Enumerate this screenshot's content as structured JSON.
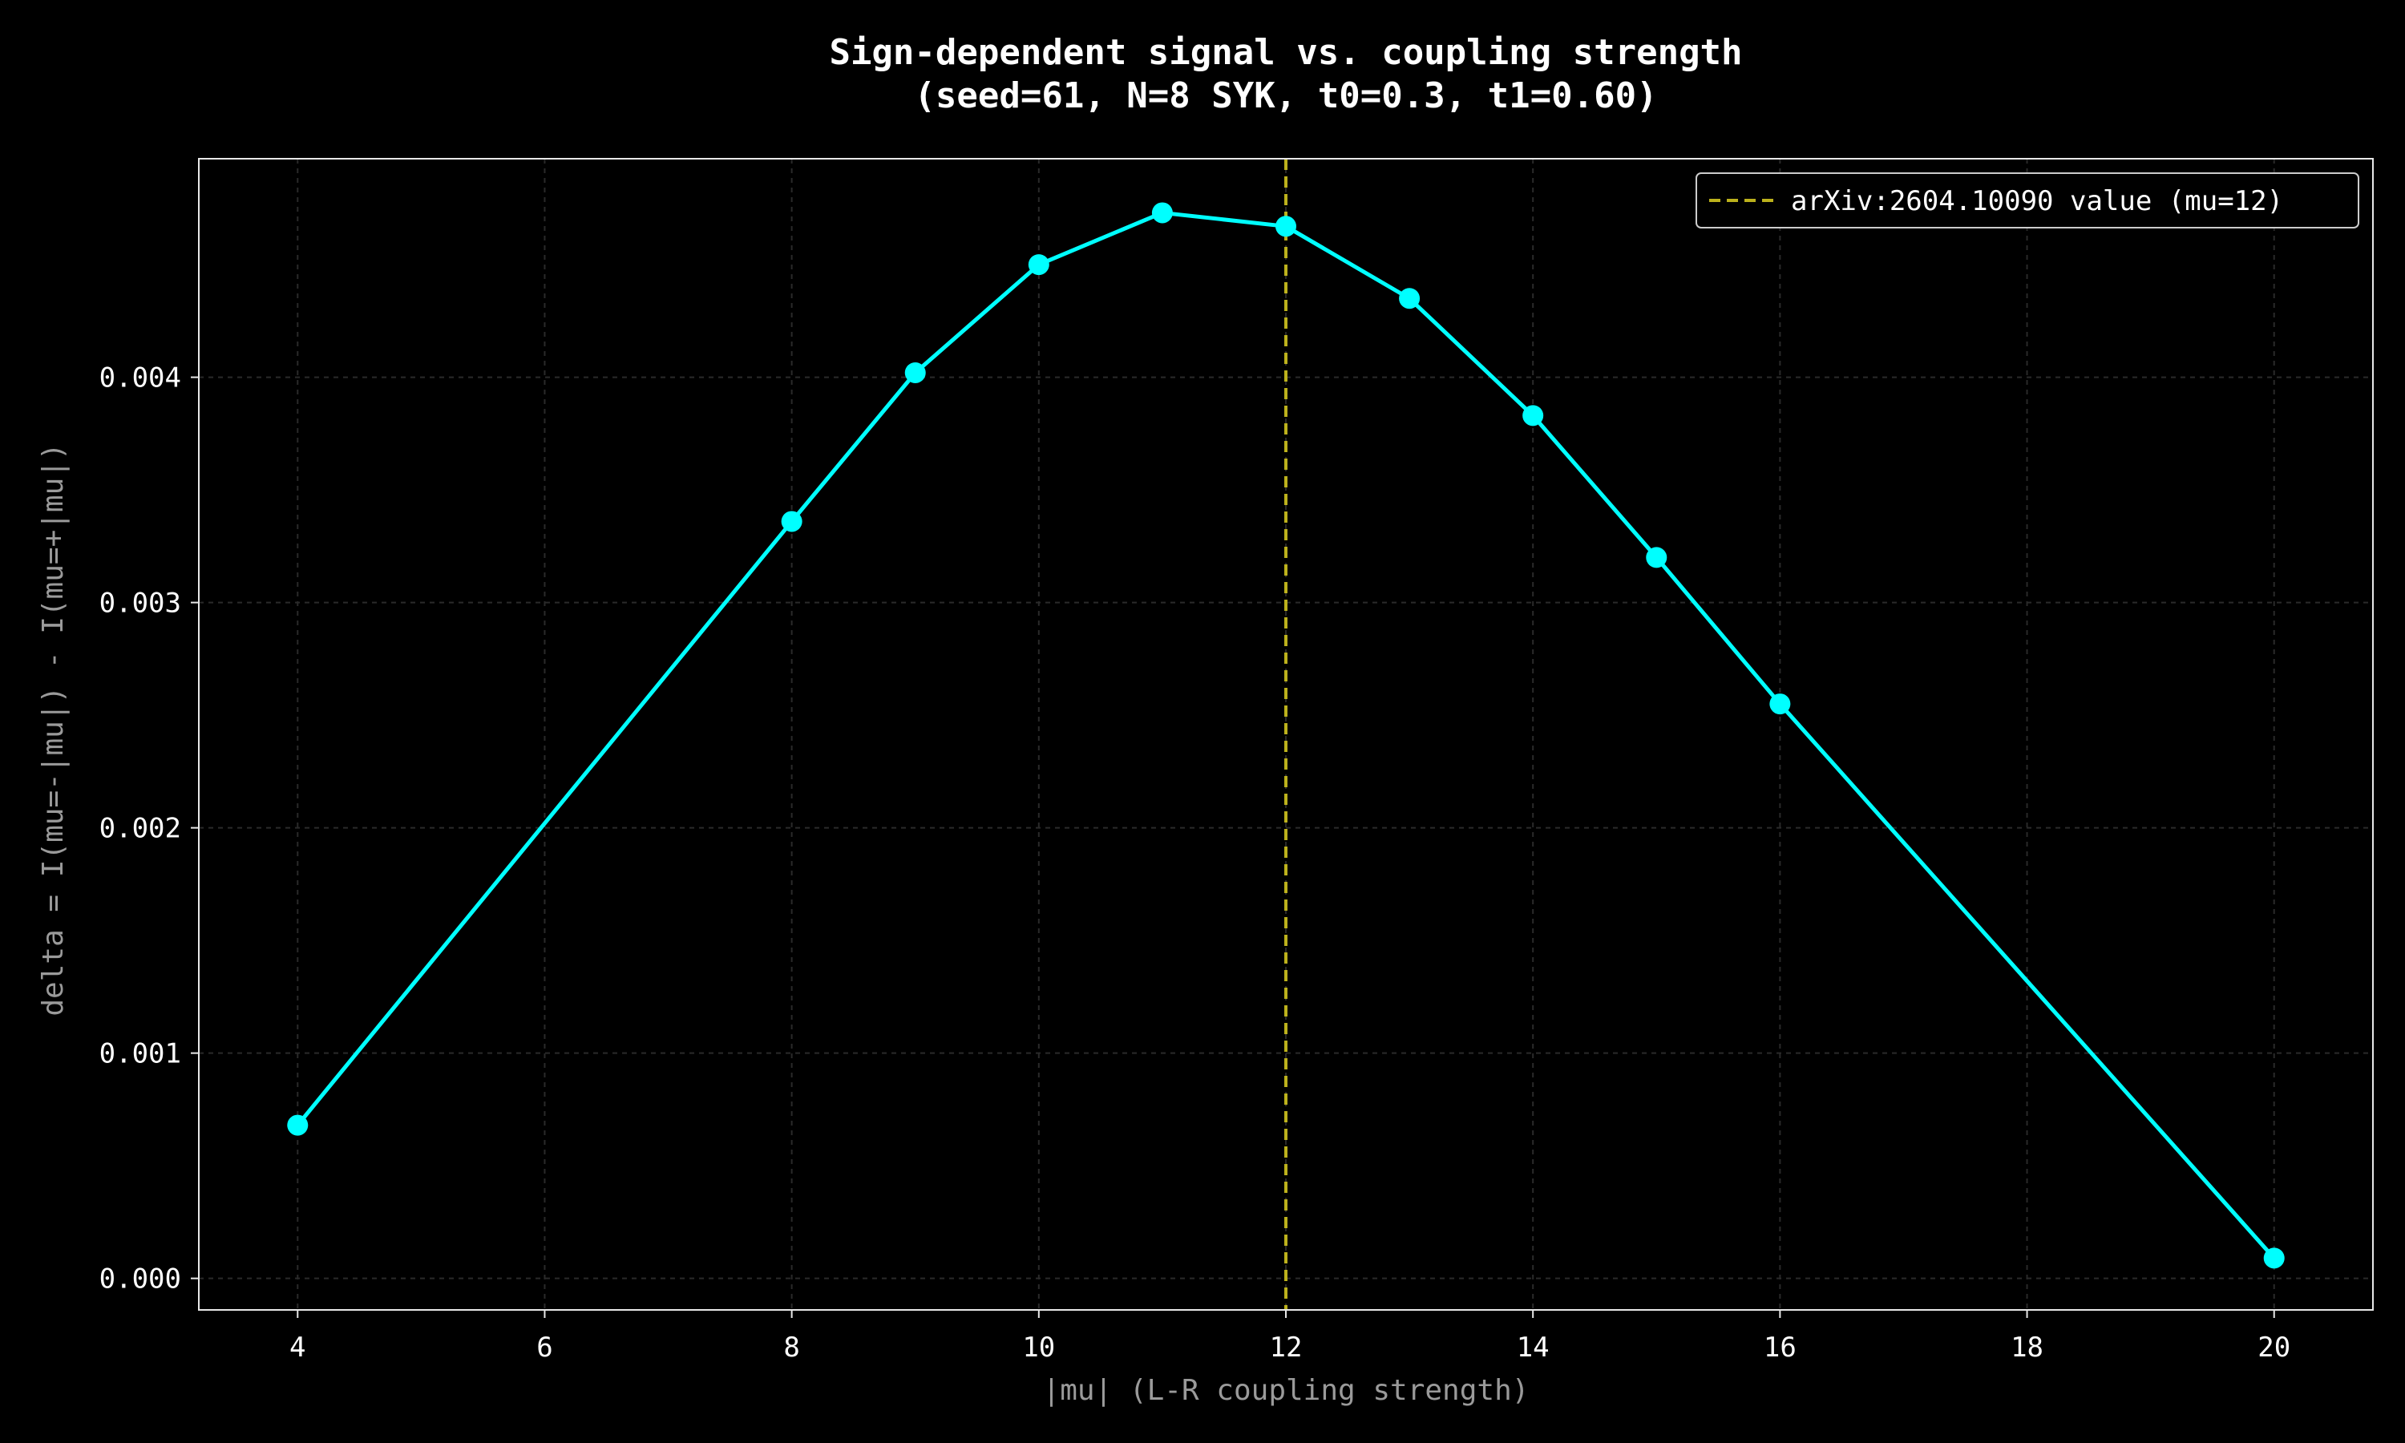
{
  "chart_data": {
    "type": "line",
    "title": "Sign-dependent signal vs. coupling strength",
    "subtitle": "(seed=61, N=8 SYK, t0=0.3, t1=0.60)",
    "xlabel": "|mu| (L-R coupling strength)",
    "ylabel": "delta = I(mu=-|mu|) - I(mu=+|mu|)",
    "xlim": [
      3.2,
      20.8
    ],
    "ylim": [
      -0.00014,
      0.00497
    ],
    "xticks": [
      4,
      6,
      8,
      10,
      12,
      14,
      16,
      18,
      20
    ],
    "xtick_labels": [
      "4",
      "6",
      "8",
      "10",
      "12",
      "14",
      "16",
      "18",
      "20"
    ],
    "yticks": [
      0.0,
      0.001,
      0.002,
      0.003,
      0.004
    ],
    "ytick_labels": [
      "0.000",
      "0.001",
      "0.002",
      "0.003",
      "0.004"
    ],
    "grid": true,
    "legend_position": "top-right",
    "series": [
      {
        "x": [
          4,
          8,
          9,
          10,
          11,
          12,
          13,
          14,
          15,
          16,
          20
        ],
        "y": [
          0.00068,
          0.00336,
          0.00402,
          0.0045,
          0.00473,
          0.00467,
          0.00435,
          0.00383,
          0.0032,
          0.00255,
          9e-05
        ],
        "color": "#00ffff"
      }
    ],
    "reference_line": {
      "x": 12,
      "label": "arXiv:2604.10090 value (mu=12)",
      "color": "#bcb11c",
      "style": "dashed"
    }
  },
  "colors": {
    "background": "#000000",
    "axes_frame": "#e8e8e8",
    "grid": "#2a2a2a",
    "tick_text": "#ffffff",
    "axis_label": "#9a9a9a"
  }
}
